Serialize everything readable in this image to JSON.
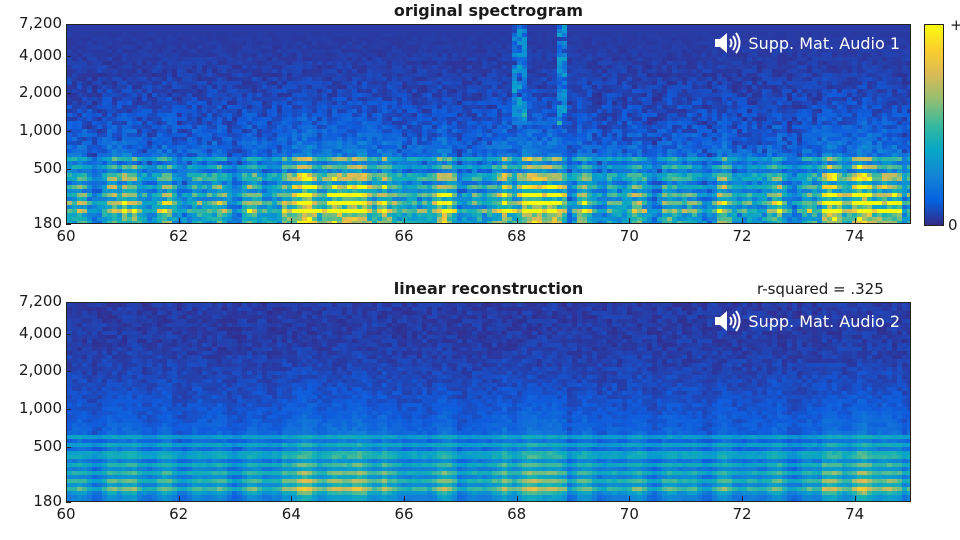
{
  "chart_data": [
    {
      "type": "heatmap",
      "title": "original spectrogram",
      "x_ticks": [
        "60",
        "62",
        "64",
        "66",
        "68",
        "70",
        "72",
        "74"
      ],
      "x_tick_values": [
        60,
        62,
        64,
        66,
        68,
        70,
        72,
        74
      ],
      "xlim": [
        60,
        75
      ],
      "y_scale": "log",
      "y_ticks": [
        "7,200",
        "4,000",
        "2,000",
        "1,000",
        "500",
        "180"
      ],
      "y_tick_values": [
        7200,
        4000,
        2000,
        1000,
        500,
        180
      ],
      "ylim": [
        180,
        7200
      ],
      "colormap": "parula",
      "audio_label": "Supp. Mat. Audio 1",
      "colorbar": {
        "max_label": "+",
        "min_label": "0"
      }
    },
    {
      "type": "heatmap",
      "title": "linear reconstruction",
      "annotation": "r-squared = .325",
      "x_ticks": [
        "60",
        "62",
        "64",
        "66",
        "68",
        "70",
        "72",
        "74"
      ],
      "x_tick_values": [
        60,
        62,
        64,
        66,
        68,
        70,
        72,
        74
      ],
      "xlim": [
        60,
        75
      ],
      "y_scale": "log",
      "y_ticks": [
        "7,200",
        "4,000",
        "2,000",
        "1,000",
        "500",
        "180"
      ],
      "y_tick_values": [
        7200,
        4000,
        2000,
        1000,
        500,
        180
      ],
      "ylim": [
        180,
        7200
      ],
      "colormap": "parula",
      "audio_label": "Supp. Mat. Audio 2"
    }
  ],
  "icons": {
    "audio": "speaker-icon"
  }
}
